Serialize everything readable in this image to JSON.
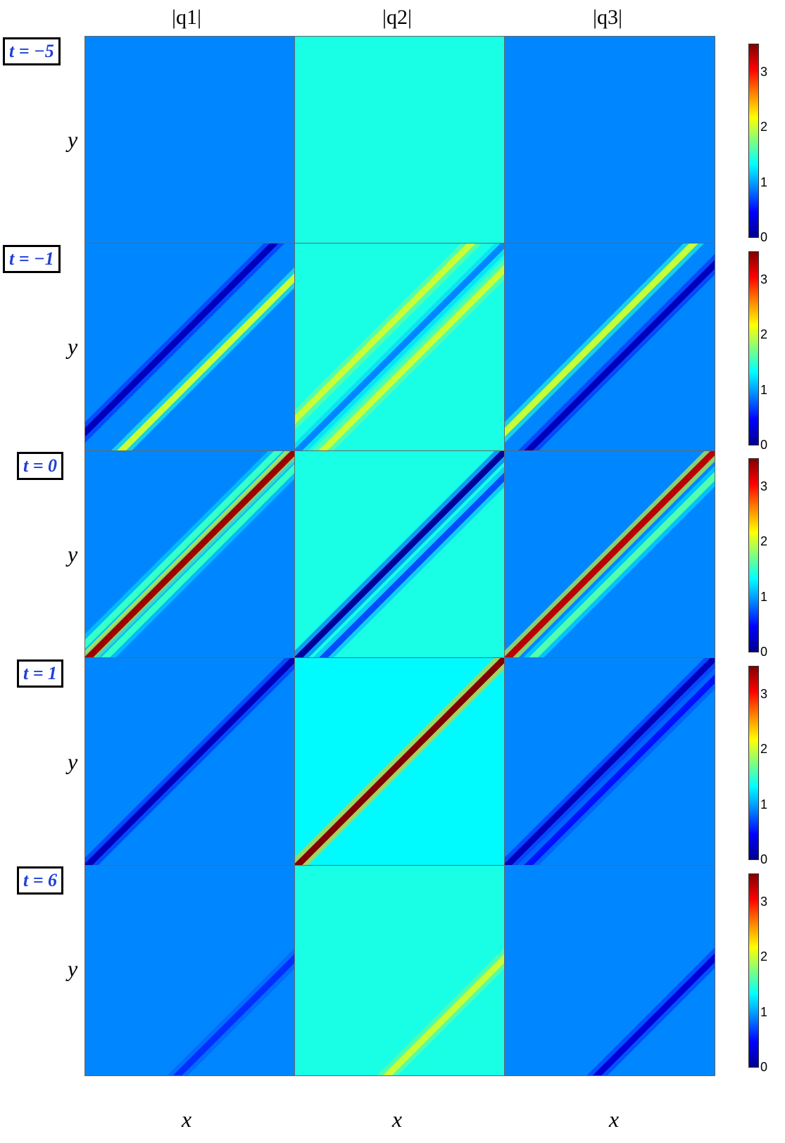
{
  "column_titles": [
    "|q1|",
    "|q2|",
    "|q3|"
  ],
  "row_labels": [
    "t = −5",
    "t = −1",
    "t = 0",
    "t = 1",
    "t = 6"
  ],
  "x_axis_label": "x",
  "y_axis_label": "y",
  "colorbar_ticks": [
    "0",
    "1",
    "2",
    "3"
  ],
  "chart_data": {
    "type": "heatmap",
    "colormap": "jet",
    "value_range": [
      0,
      3.5
    ],
    "rows": [
      {
        "t": -5,
        "panels": [
          {
            "component": "|q1|",
            "background": 0.9,
            "stripes": []
          },
          {
            "component": "|q2|",
            "background": 1.4,
            "stripes": []
          },
          {
            "component": "|q3|",
            "background": 0.9,
            "stripes": []
          }
        ]
      },
      {
        "t": -1,
        "panels": [
          {
            "component": "|q1|",
            "background": 0.9,
            "stripes": [
              {
                "offset": -0.05,
                "value": 0.2
              },
              {
                "offset": 0.08,
                "value": 2.0
              }
            ]
          },
          {
            "component": "|q2|",
            "background": 1.4,
            "stripes": [
              {
                "offset": -0.08,
                "value": 2.0
              },
              {
                "offset": 0.0,
                "value": 0.9
              },
              {
                "offset": 0.06,
                "value": 2.0
              }
            ]
          },
          {
            "component": "|q3|",
            "background": 0.9,
            "stripes": [
              {
                "offset": -0.05,
                "value": 2.0
              },
              {
                "offset": 0.05,
                "value": 0.2
              }
            ]
          }
        ]
      },
      {
        "t": 0,
        "panels": [
          {
            "component": "|q1|",
            "background": 0.9,
            "stripes": [
              {
                "offset": -0.04,
                "value": 1.5
              },
              {
                "offset": 0.0,
                "value": 3.4
              },
              {
                "offset": 0.04,
                "value": 1.5
              }
            ]
          },
          {
            "component": "|q2|",
            "background": 1.4,
            "stripes": [
              {
                "offset": 0.0,
                "value": 0.1
              },
              {
                "offset": 0.06,
                "value": 0.7
              }
            ]
          },
          {
            "component": "|q3|",
            "background": 0.9,
            "stripes": [
              {
                "offset": 0.0,
                "value": 3.3
              },
              {
                "offset": 0.06,
                "value": 1.6
              }
            ]
          }
        ]
      },
      {
        "t": 1,
        "panels": [
          {
            "component": "|q1|",
            "background": 0.9,
            "stripes": [
              {
                "offset": 0.0,
                "value": 0.2
              }
            ]
          },
          {
            "component": "|q2|",
            "background": 1.3,
            "stripes": [
              {
                "offset": 0.0,
                "value": 3.5
              }
            ]
          },
          {
            "component": "|q3|",
            "background": 0.9,
            "stripes": [
              {
                "offset": 0.0,
                "value": 0.2
              },
              {
                "offset": 0.05,
                "value": 0.5
              }
            ]
          }
        ]
      },
      {
        "t": 6,
        "panels": [
          {
            "component": "|q1|",
            "background": 0.9,
            "stripes": [
              {
                "offset": 0.22,
                "value": 0.6
              }
            ]
          },
          {
            "component": "|q2|",
            "background": 1.4,
            "stripes": [
              {
                "offset": 0.22,
                "value": 2.0
              }
            ]
          },
          {
            "component": "|q3|",
            "background": 0.9,
            "stripes": [
              {
                "offset": 0.22,
                "value": 0.3
              }
            ]
          }
        ]
      }
    ]
  }
}
